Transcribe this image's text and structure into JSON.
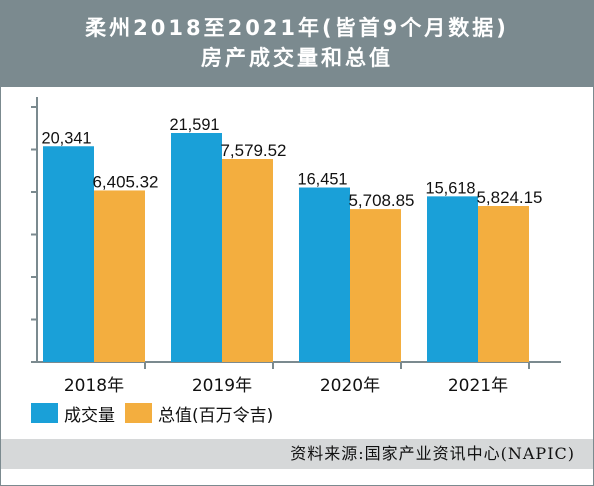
{
  "header": {
    "title_line1": "柔州2018至2021年(皆首9个月数据)",
    "title_line2": "房产成交量和总值"
  },
  "chart_data": {
    "type": "bar",
    "categories": [
      "2018年",
      "2019年",
      "2020年",
      "2021年"
    ],
    "series": [
      {
        "name": "成交量",
        "values": [
          20341,
          21591,
          16451,
          15618
        ],
        "labels": [
          "20,341",
          "21,591",
          "16,451",
          "15,618"
        ],
        "color": "#1aa0d8"
      },
      {
        "name": "总值(百万令吉)",
        "values": [
          6405.32,
          7579.52,
          5708.85,
          5824.15
        ],
        "labels": [
          "6,405.32",
          "7,579.52",
          "5,708.85",
          "5,824.15"
        ],
        "color": "#f3ae3f"
      }
    ],
    "title": "柔州2018至2021年(皆首9个月数据) 房产成交量和总值",
    "xlabel": "",
    "ylabel": "",
    "grid": false,
    "legend": "bottom-left"
  },
  "source": "资料来源:国家产业资讯中心(NAPIC)",
  "colors": {
    "header_bg": "#7b8a8f",
    "source_bg": "#d6d8d9",
    "axis": "#7b8a8f"
  }
}
